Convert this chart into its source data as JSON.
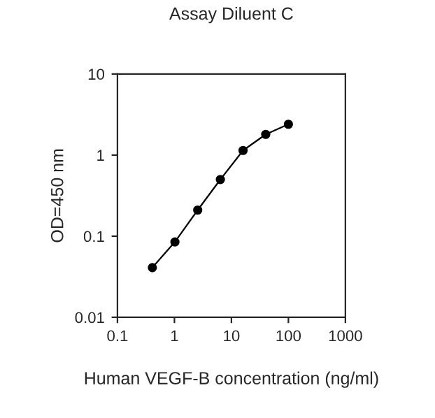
{
  "chart_data": {
    "type": "line",
    "title": "Assay Diluent C",
    "xlabel": "Human VEGF-B concentration (ng/ml)",
    "ylabel": "OD=450 nm",
    "x": [
      0.41,
      1.02,
      2.56,
      6.4,
      16,
      40,
      100
    ],
    "series": [
      {
        "color": "#000000",
        "values": [
          0.041,
          0.085,
          0.21,
          0.5,
          1.14,
          1.8,
          2.4
        ]
      }
    ],
    "log": "xy",
    "xlim": [
      0.1,
      1000
    ],
    "ylim": [
      0.01,
      10
    ],
    "xticks": [
      0.1,
      1,
      10,
      100,
      1000
    ],
    "yticks": [
      0.01,
      0.1,
      1,
      10
    ],
    "marker": "circle",
    "line_style": "solid",
    "grid": false,
    "legend": false
  }
}
